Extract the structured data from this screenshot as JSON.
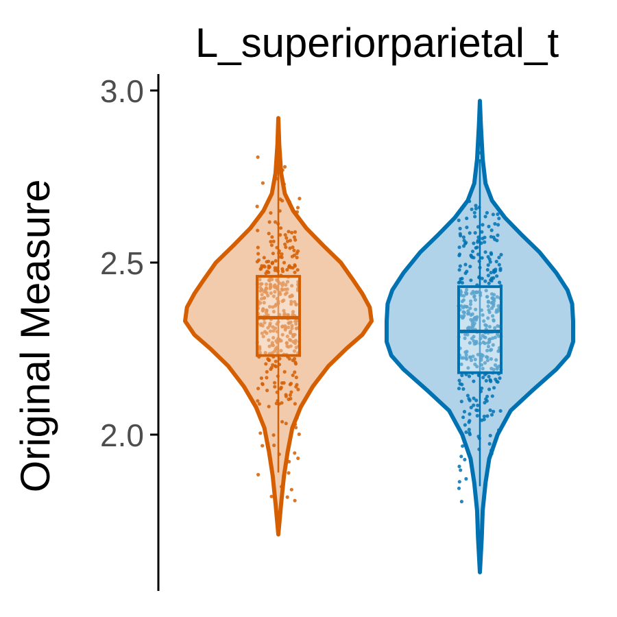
{
  "chart_data": {
    "type": "violin",
    "title": "L_superiorparietal_t",
    "xlabel": "",
    "ylabel": "Original Measure",
    "ylim": [
      1.55,
      3.05
    ],
    "yticks": [
      2.0,
      2.5,
      3.0
    ],
    "ytick_labels": [
      "2.0",
      "2.5",
      "3.0"
    ],
    "grid": false,
    "legend": "none",
    "groups": [
      {
        "color": "#D55E00",
        "fill": "#F2CBAD",
        "min": 1.71,
        "max": 2.92,
        "q1": 2.23,
        "median": 2.34,
        "q3": 2.46,
        "whisker_low": 1.89,
        "whisker_high": 2.79,
        "density": [
          [
            1.71,
            0.0
          ],
          [
            1.8,
            0.03
          ],
          [
            1.88,
            0.06
          ],
          [
            1.95,
            0.1
          ],
          [
            2.02,
            0.15
          ],
          [
            2.08,
            0.24
          ],
          [
            2.14,
            0.37
          ],
          [
            2.2,
            0.54
          ],
          [
            2.25,
            0.73
          ],
          [
            2.29,
            0.9
          ],
          [
            2.33,
            1.0
          ],
          [
            2.37,
            0.98
          ],
          [
            2.41,
            0.9
          ],
          [
            2.45,
            0.8
          ],
          [
            2.5,
            0.67
          ],
          [
            2.55,
            0.48
          ],
          [
            2.6,
            0.3
          ],
          [
            2.65,
            0.16
          ],
          [
            2.7,
            0.07
          ],
          [
            2.76,
            0.03
          ],
          [
            2.84,
            0.01
          ],
          [
            2.92,
            0.0
          ]
        ]
      },
      {
        "color": "#0072B2",
        "fill": "#B0D3EA",
        "min": 1.6,
        "max": 2.97,
        "q1": 2.18,
        "median": 2.3,
        "q3": 2.43,
        "whisker_low": 1.85,
        "whisker_high": 2.8,
        "density": [
          [
            1.6,
            0.0
          ],
          [
            1.7,
            0.02
          ],
          [
            1.78,
            0.03
          ],
          [
            1.86,
            0.06
          ],
          [
            1.93,
            0.1
          ],
          [
            2.0,
            0.19
          ],
          [
            2.07,
            0.33
          ],
          [
            2.13,
            0.57
          ],
          [
            2.19,
            0.82
          ],
          [
            2.23,
            0.95
          ],
          [
            2.27,
            1.0
          ],
          [
            2.33,
            1.0
          ],
          [
            2.38,
            0.99
          ],
          [
            2.42,
            0.94
          ],
          [
            2.47,
            0.82
          ],
          [
            2.53,
            0.64
          ],
          [
            2.58,
            0.45
          ],
          [
            2.63,
            0.27
          ],
          [
            2.68,
            0.13
          ],
          [
            2.73,
            0.06
          ],
          [
            2.8,
            0.03
          ],
          [
            2.9,
            0.01
          ],
          [
            2.97,
            0.0
          ]
        ]
      }
    ]
  }
}
